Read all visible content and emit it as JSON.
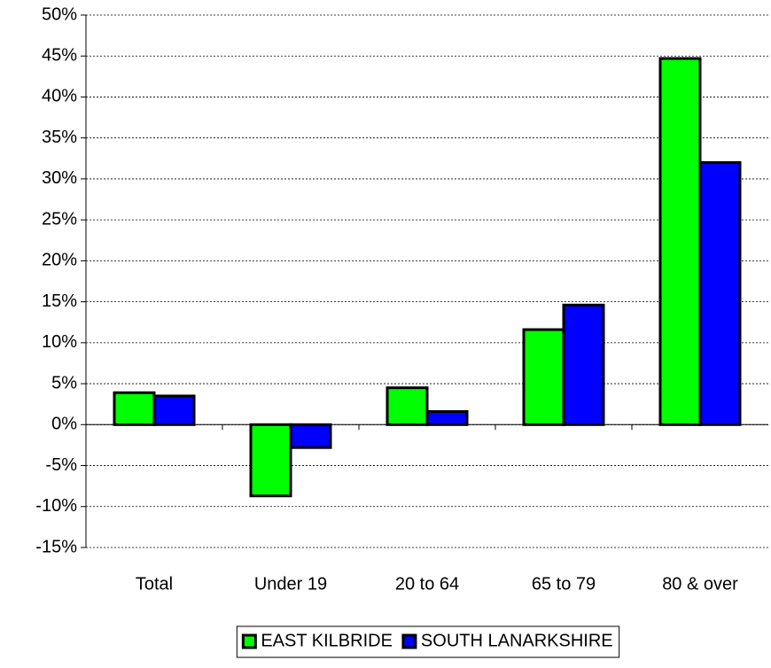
{
  "chart_data": {
    "type": "bar",
    "categories": [
      "Total",
      "Under 19",
      "20 to 64",
      "65 to 79",
      "80 & over"
    ],
    "series": [
      {
        "name": "EAST KILBRIDE",
        "color": "#00ff00",
        "values": [
          3.9,
          -8.7,
          4.5,
          11.6,
          44.7
        ]
      },
      {
        "name": "SOUTH LANARKSHIRE",
        "color": "#0000ff",
        "values": [
          3.5,
          -2.8,
          1.6,
          14.6,
          32.0
        ]
      }
    ],
    "ylim": [
      -15,
      50
    ],
    "yticks": [
      {
        "value": -15,
        "label": "-15%"
      },
      {
        "value": -10,
        "label": "-10%"
      },
      {
        "value": -5,
        "label": "-5%"
      },
      {
        "value": 0,
        "label": "0%"
      },
      {
        "value": 5,
        "label": "5%"
      },
      {
        "value": 10,
        "label": "10%"
      },
      {
        "value": 15,
        "label": "15%"
      },
      {
        "value": 20,
        "label": "20%"
      },
      {
        "value": 25,
        "label": "25%"
      },
      {
        "value": 30,
        "label": "30%"
      },
      {
        "value": 35,
        "label": "35%"
      },
      {
        "value": 40,
        "label": "40%"
      },
      {
        "value": 45,
        "label": "45%"
      },
      {
        "value": 50,
        "label": "50%"
      }
    ],
    "grid": true,
    "legend": "bottom"
  }
}
